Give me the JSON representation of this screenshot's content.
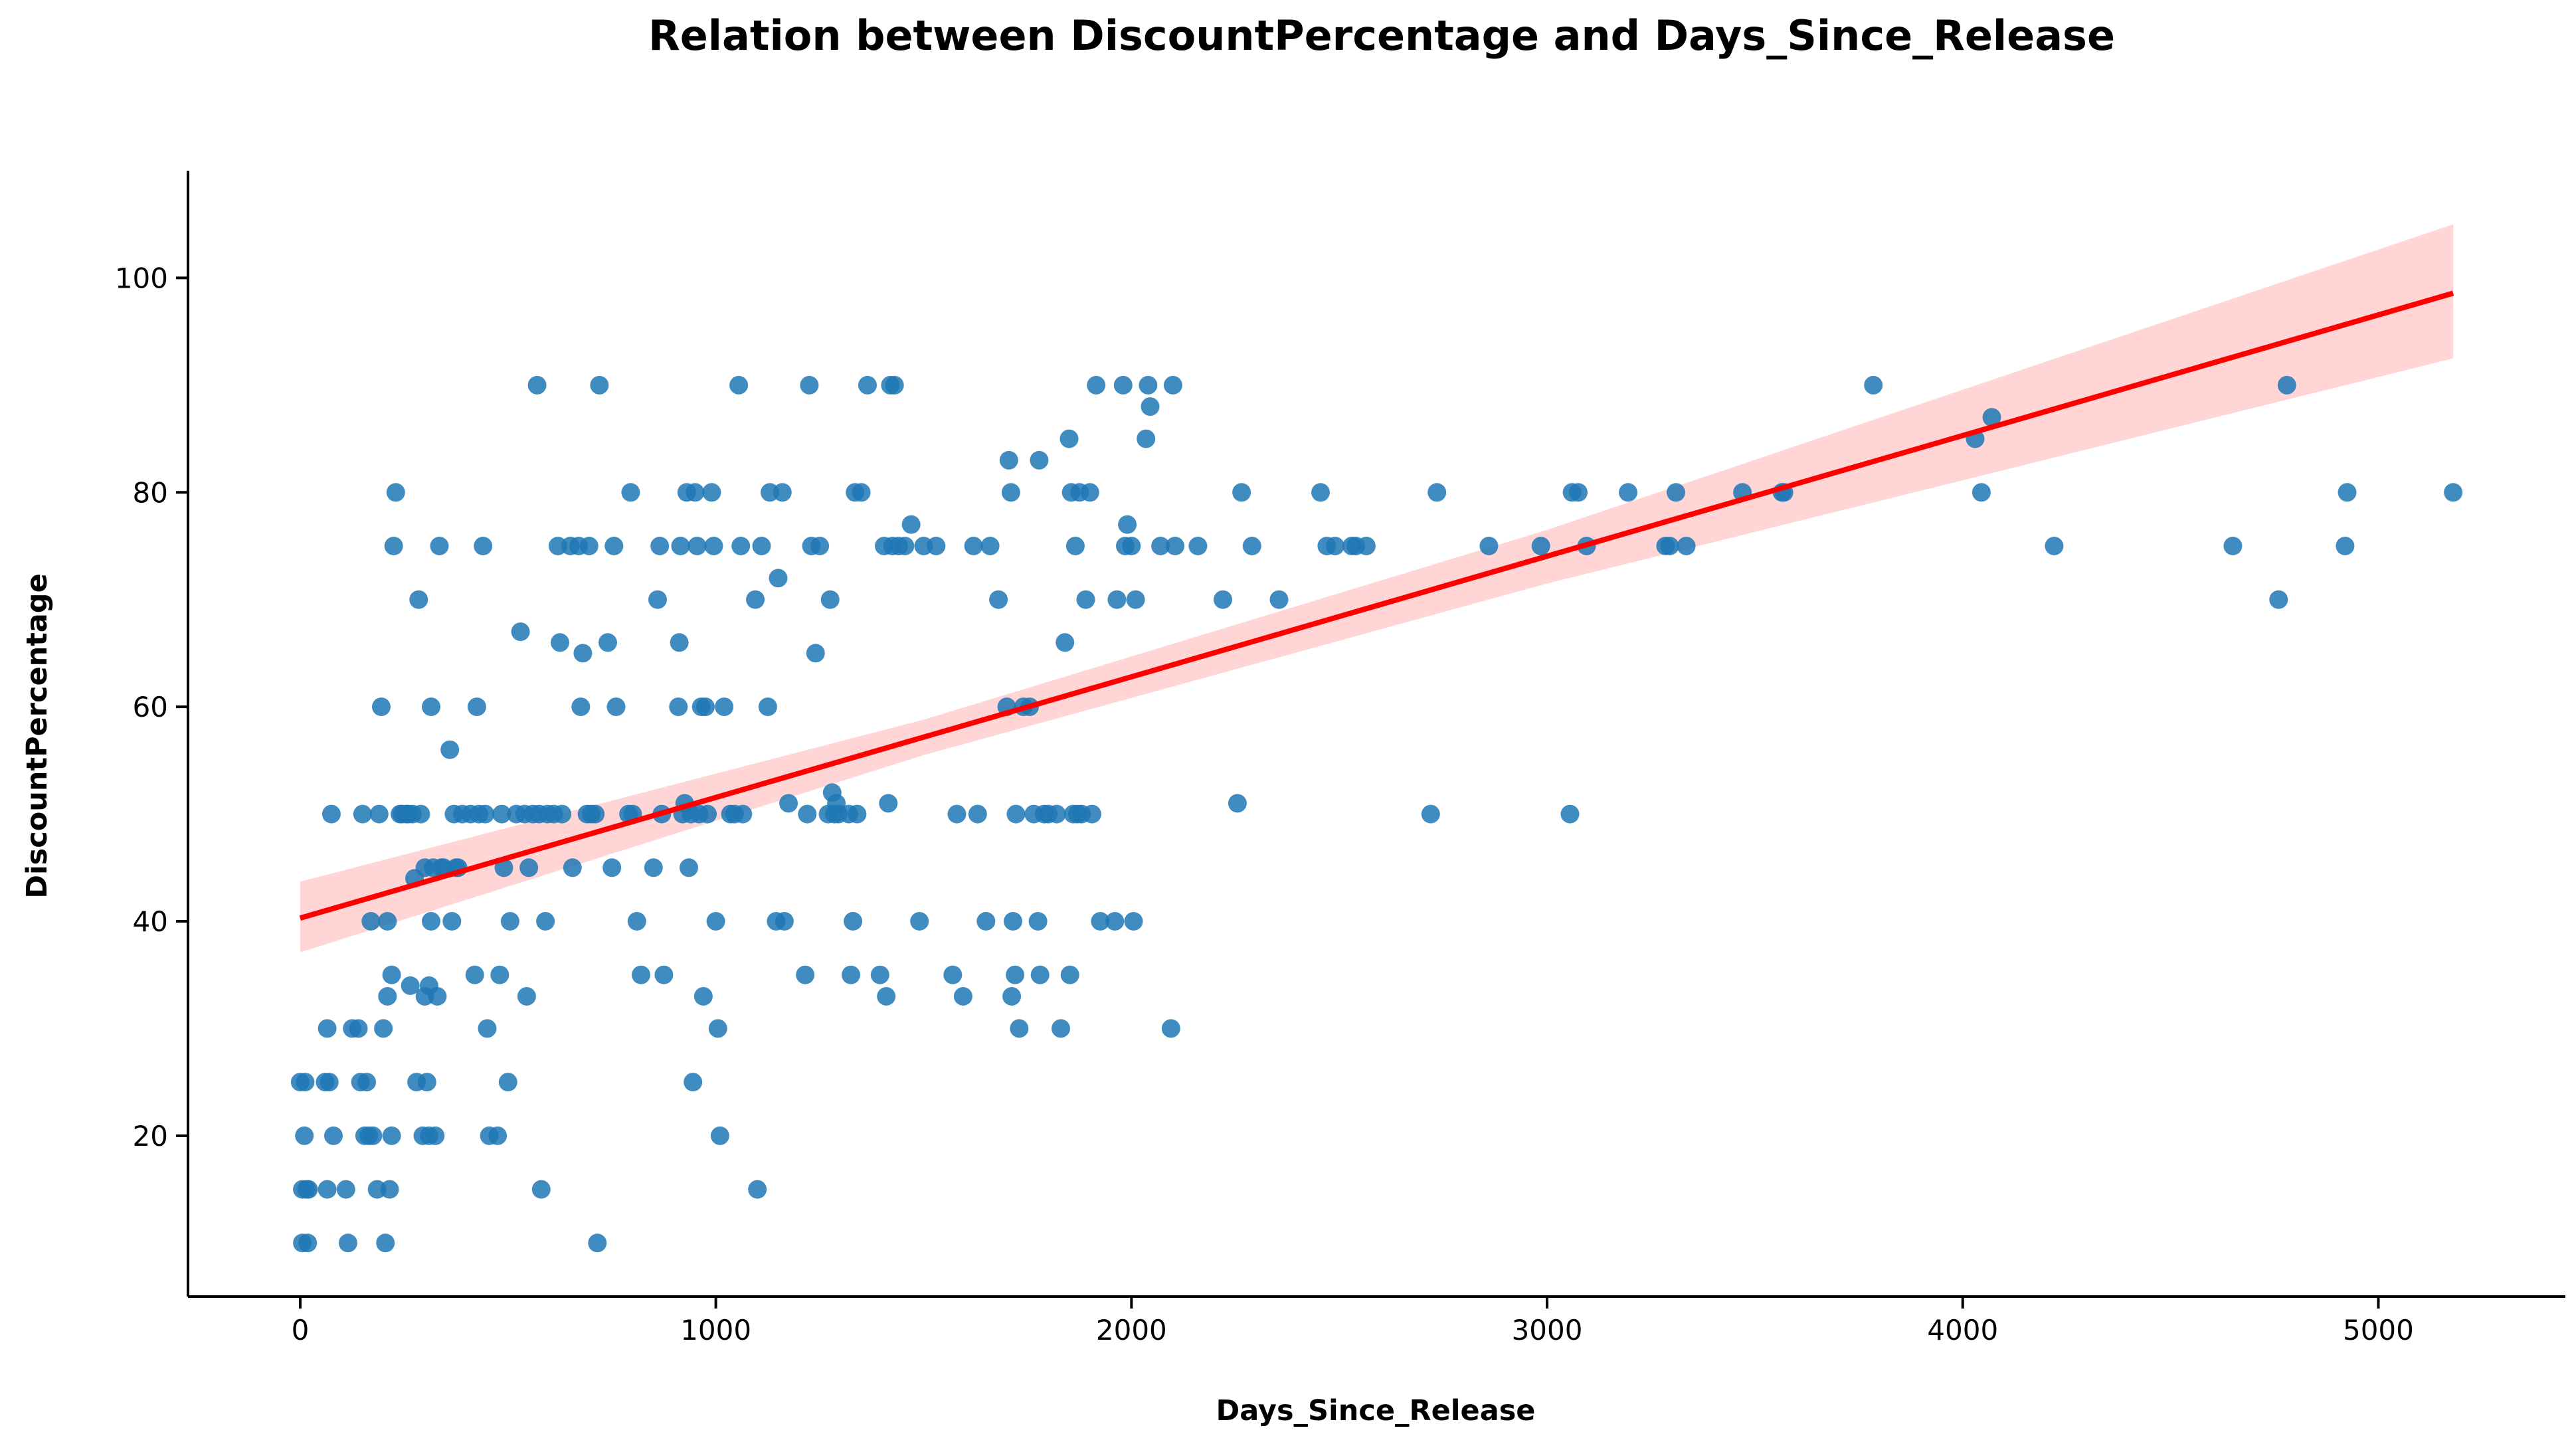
{
  "chart_data": {
    "type": "scatter",
    "title": "Relation between DiscountPercentage and Days_Since_Release",
    "xlabel": "Days_Since_Release",
    "ylabel": "DiscountPercentage",
    "xlim": [
      -270,
      5450
    ],
    "ylim": [
      5,
      110
    ],
    "xticks": [
      0,
      1000,
      2000,
      3000,
      4000,
      5000
    ],
    "yticks": [
      20,
      40,
      60,
      80,
      100
    ],
    "grid": false,
    "legend": "none",
    "point_color": "#1f77b4",
    "regression": {
      "color": "#ff0000",
      "band_color": "#ffb3b3",
      "x_range": [
        0,
        5180
      ],
      "intercept": 40.3,
      "slope": 0.01125,
      "ci_low": [
        [
          0,
          37.1
        ],
        [
          1500,
          55.5
        ],
        [
          3000,
          71.5
        ],
        [
          5180,
          92.5
        ]
      ],
      "ci_high": [
        [
          0,
          43.7
        ],
        [
          1500,
          58.8
        ],
        [
          3000,
          76.5
        ],
        [
          5180,
          105.0
        ]
      ]
    },
    "points": [
      [
        0,
        25
      ],
      [
        5,
        10
      ],
      [
        5,
        15
      ],
      [
        10,
        20
      ],
      [
        12,
        25
      ],
      [
        15,
        15
      ],
      [
        18,
        10
      ],
      [
        20,
        15
      ],
      [
        60,
        25
      ],
      [
        65,
        15
      ],
      [
        70,
        25
      ],
      [
        65,
        30
      ],
      [
        75,
        50
      ],
      [
        80,
        20
      ],
      [
        110,
        15
      ],
      [
        115,
        10
      ],
      [
        125,
        30
      ],
      [
        140,
        30
      ],
      [
        145,
        25
      ],
      [
        150,
        50
      ],
      [
        155,
        20
      ],
      [
        160,
        25
      ],
      [
        165,
        20
      ],
      [
        170,
        40
      ],
      [
        175,
        20
      ],
      [
        185,
        15
      ],
      [
        190,
        50
      ],
      [
        195,
        60
      ],
      [
        200,
        30
      ],
      [
        205,
        10
      ],
      [
        210,
        40
      ],
      [
        210,
        33
      ],
      [
        215,
        15
      ],
      [
        220,
        35
      ],
      [
        220,
        20
      ],
      [
        225,
        75
      ],
      [
        230,
        80
      ],
      [
        240,
        50
      ],
      [
        245,
        50
      ],
      [
        255,
        50
      ],
      [
        260,
        50
      ],
      [
        265,
        34
      ],
      [
        270,
        50
      ],
      [
        275,
        44
      ],
      [
        280,
        25
      ],
      [
        285,
        70
      ],
      [
        290,
        50
      ],
      [
        295,
        20
      ],
      [
        300,
        45
      ],
      [
        300,
        33
      ],
      [
        305,
        25
      ],
      [
        310,
        20
      ],
      [
        310,
        34
      ],
      [
        315,
        60
      ],
      [
        315,
        40
      ],
      [
        320,
        45
      ],
      [
        325,
        20
      ],
      [
        330,
        33
      ],
      [
        335,
        75
      ],
      [
        340,
        45
      ],
      [
        345,
        45
      ],
      [
        360,
        56
      ],
      [
        365,
        40
      ],
      [
        370,
        50
      ],
      [
        375,
        45
      ],
      [
        380,
        45
      ],
      [
        390,
        50
      ],
      [
        410,
        50
      ],
      [
        420,
        35
      ],
      [
        425,
        60
      ],
      [
        430,
        50
      ],
      [
        440,
        75
      ],
      [
        445,
        50
      ],
      [
        450,
        30
      ],
      [
        455,
        20
      ],
      [
        475,
        20
      ],
      [
        480,
        35
      ],
      [
        485,
        50
      ],
      [
        490,
        45
      ],
      [
        500,
        25
      ],
      [
        505,
        40
      ],
      [
        520,
        50
      ],
      [
        530,
        67
      ],
      [
        540,
        50
      ],
      [
        545,
        33
      ],
      [
        550,
        45
      ],
      [
        560,
        50
      ],
      [
        570,
        90
      ],
      [
        575,
        50
      ],
      [
        580,
        15
      ],
      [
        590,
        40
      ],
      [
        595,
        50
      ],
      [
        610,
        50
      ],
      [
        620,
        75
      ],
      [
        625,
        66
      ],
      [
        630,
        50
      ],
      [
        650,
        75
      ],
      [
        655,
        45
      ],
      [
        670,
        75
      ],
      [
        675,
        60
      ],
      [
        680,
        65
      ],
      [
        690,
        50
      ],
      [
        695,
        75
      ],
      [
        700,
        50
      ],
      [
        710,
        50
      ],
      [
        715,
        10
      ],
      [
        720,
        90
      ],
      [
        740,
        66
      ],
      [
        750,
        45
      ],
      [
        755,
        75
      ],
      [
        760,
        60
      ],
      [
        790,
        50
      ],
      [
        795,
        80
      ],
      [
        800,
        50
      ],
      [
        810,
        40
      ],
      [
        820,
        35
      ],
      [
        850,
        45
      ],
      [
        860,
        70
      ],
      [
        865,
        75
      ],
      [
        870,
        50
      ],
      [
        875,
        35
      ],
      [
        910,
        60
      ],
      [
        912,
        66
      ],
      [
        915,
        75
      ],
      [
        920,
        50
      ],
      [
        925,
        51
      ],
      [
        930,
        80
      ],
      [
        935,
        45
      ],
      [
        940,
        50
      ],
      [
        945,
        25
      ],
      [
        950,
        80
      ],
      [
        955,
        75
      ],
      [
        960,
        50
      ],
      [
        965,
        60
      ],
      [
        970,
        33
      ],
      [
        975,
        60
      ],
      [
        980,
        50
      ],
      [
        990,
        80
      ],
      [
        995,
        75
      ],
      [
        1000,
        40
      ],
      [
        1005,
        30
      ],
      [
        1010,
        20
      ],
      [
        1020,
        60
      ],
      [
        1035,
        50
      ],
      [
        1045,
        50
      ],
      [
        1055,
        90
      ],
      [
        1060,
        75
      ],
      [
        1065,
        50
      ],
      [
        1095,
        70
      ],
      [
        1100,
        15
      ],
      [
        1110,
        75
      ],
      [
        1125,
        60
      ],
      [
        1130,
        80
      ],
      [
        1145,
        40
      ],
      [
        1150,
        72
      ],
      [
        1160,
        80
      ],
      [
        1165,
        40
      ],
      [
        1175,
        51
      ],
      [
        1215,
        35
      ],
      [
        1220,
        50
      ],
      [
        1225,
        90
      ],
      [
        1230,
        75
      ],
      [
        1240,
        65
      ],
      [
        1250,
        75
      ],
      [
        1270,
        50
      ],
      [
        1275,
        70
      ],
      [
        1280,
        52
      ],
      [
        1285,
        50
      ],
      [
        1290,
        51
      ],
      [
        1295,
        50
      ],
      [
        1320,
        50
      ],
      [
        1325,
        35
      ],
      [
        1330,
        40
      ],
      [
        1335,
        80
      ],
      [
        1340,
        50
      ],
      [
        1350,
        80
      ],
      [
        1365,
        90
      ],
      [
        1395,
        35
      ],
      [
        1405,
        75
      ],
      [
        1410,
        33
      ],
      [
        1415,
        51
      ],
      [
        1420,
        90
      ],
      [
        1425,
        75
      ],
      [
        1430,
        90
      ],
      [
        1440,
        75
      ],
      [
        1455,
        75
      ],
      [
        1470,
        77
      ],
      [
        1490,
        40
      ],
      [
        1500,
        75
      ],
      [
        1530,
        75
      ],
      [
        1570,
        35
      ],
      [
        1580,
        50
      ],
      [
        1595,
        33
      ],
      [
        1620,
        75
      ],
      [
        1630,
        50
      ],
      [
        1650,
        40
      ],
      [
        1660,
        75
      ],
      [
        1680,
        70
      ],
      [
        1700,
        60
      ],
      [
        1705,
        83
      ],
      [
        1710,
        80
      ],
      [
        1712,
        33
      ],
      [
        1715,
        40
      ],
      [
        1720,
        35
      ],
      [
        1722,
        50
      ],
      [
        1730,
        30
      ],
      [
        1740,
        60
      ],
      [
        1755,
        60
      ],
      [
        1765,
        50
      ],
      [
        1775,
        40
      ],
      [
        1778,
        83
      ],
      [
        1780,
        35
      ],
      [
        1790,
        50
      ],
      [
        1800,
        50
      ],
      [
        1820,
        50
      ],
      [
        1830,
        30
      ],
      [
        1840,
        66
      ],
      [
        1850,
        85
      ],
      [
        1852,
        35
      ],
      [
        1855,
        80
      ],
      [
        1860,
        50
      ],
      [
        1865,
        75
      ],
      [
        1870,
        50
      ],
      [
        1875,
        80
      ],
      [
        1880,
        50
      ],
      [
        1890,
        70
      ],
      [
        1900,
        80
      ],
      [
        1905,
        50
      ],
      [
        1915,
        90
      ],
      [
        1925,
        40
      ],
      [
        1960,
        40
      ],
      [
        1965,
        70
      ],
      [
        1980,
        90
      ],
      [
        1985,
        75
      ],
      [
        1990,
        77
      ],
      [
        2000,
        75
      ],
      [
        2005,
        40
      ],
      [
        2010,
        70
      ],
      [
        2035,
        85
      ],
      [
        2040,
        90
      ],
      [
        2045,
        88
      ],
      [
        2070,
        75
      ],
      [
        2095,
        30
      ],
      [
        2100,
        90
      ],
      [
        2105,
        75
      ],
      [
        2160,
        75
      ],
      [
        2220,
        70
      ],
      [
        2255,
        51
      ],
      [
        2265,
        80
      ],
      [
        2290,
        75
      ],
      [
        2355,
        70
      ],
      [
        2455,
        80
      ],
      [
        2470,
        75
      ],
      [
        2490,
        75
      ],
      [
        2530,
        75
      ],
      [
        2540,
        75
      ],
      [
        2565,
        75
      ],
      [
        2720,
        50
      ],
      [
        2735,
        80
      ],
      [
        2860,
        75
      ],
      [
        2985,
        75
      ],
      [
        3055,
        50
      ],
      [
        3060,
        80
      ],
      [
        3075,
        80
      ],
      [
        3095,
        75
      ],
      [
        3195,
        80
      ],
      [
        3285,
        75
      ],
      [
        3295,
        75
      ],
      [
        3310,
        80
      ],
      [
        3335,
        75
      ],
      [
        3470,
        80
      ],
      [
        3565,
        80
      ],
      [
        3570,
        80
      ],
      [
        3785,
        90
      ],
      [
        4030,
        85
      ],
      [
        4045,
        80
      ],
      [
        4070,
        87
      ],
      [
        4220,
        75
      ],
      [
        4650,
        75
      ],
      [
        4760,
        70
      ],
      [
        4780,
        90
      ],
      [
        4920,
        75
      ],
      [
        4925,
        80
      ],
      [
        5180,
        80
      ]
    ]
  }
}
